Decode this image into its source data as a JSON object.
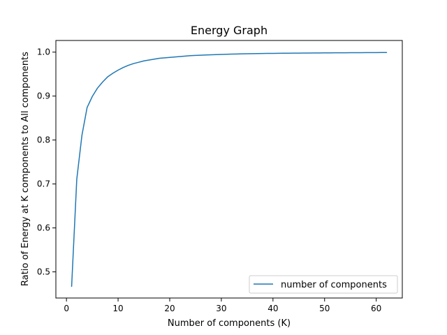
{
  "chart_data": {
    "type": "line",
    "title": "Energy Graph",
    "xlabel": "Number of components (K)",
    "ylabel": "Ratio of Energy at K components to All components",
    "xlim": [
      -2.05,
      65.05
    ],
    "ylim": [
      0.4405,
      1.0265
    ],
    "x_ticks": [
      0,
      10,
      20,
      30,
      40,
      50,
      60
    ],
    "x_tick_labels": [
      "0",
      "10",
      "20",
      "30",
      "40",
      "50",
      "60"
    ],
    "y_ticks": [
      0.5,
      0.6,
      0.7,
      0.8,
      0.9,
      1.0
    ],
    "y_tick_labels": [
      "0.5",
      "0.6",
      "0.7",
      "0.8",
      "0.9",
      "1.0"
    ],
    "grid": false,
    "legend_position": "lower right",
    "series": [
      {
        "name": "number of components",
        "color": "#1f77b4",
        "x": [
          1,
          2,
          3,
          4,
          5,
          6,
          7,
          8,
          9,
          10,
          11,
          12,
          13,
          14,
          15,
          16,
          17,
          18,
          19,
          20,
          21,
          22,
          23,
          24,
          25,
          26,
          27,
          28,
          29,
          30,
          31,
          32,
          33,
          34,
          35,
          36,
          37,
          38,
          39,
          40,
          41,
          42,
          43,
          44,
          45,
          46,
          47,
          48,
          49,
          50,
          51,
          52,
          53,
          54,
          55,
          56,
          57,
          58,
          59,
          60,
          61,
          62
        ],
        "values": [
          0.467,
          0.711,
          0.811,
          0.874,
          0.899,
          0.918,
          0.932,
          0.944,
          0.952,
          0.959,
          0.965,
          0.97,
          0.974,
          0.977,
          0.98,
          0.982,
          0.984,
          0.986,
          0.987,
          0.988,
          0.989,
          0.99,
          0.991,
          0.992,
          0.9925,
          0.993,
          0.9935,
          0.994,
          0.9944,
          0.9948,
          0.9952,
          0.9955,
          0.9958,
          0.9961,
          0.9963,
          0.9965,
          0.9967,
          0.9969,
          0.9971,
          0.9972,
          0.9974,
          0.9975,
          0.9976,
          0.9977,
          0.9978,
          0.9979,
          0.998,
          0.9981,
          0.9982,
          0.9983,
          0.9984,
          0.9985,
          0.9986,
          0.9986,
          0.9987,
          0.9988,
          0.9988,
          0.9989,
          0.999,
          0.999,
          0.9991,
          0.9991
        ]
      }
    ]
  }
}
